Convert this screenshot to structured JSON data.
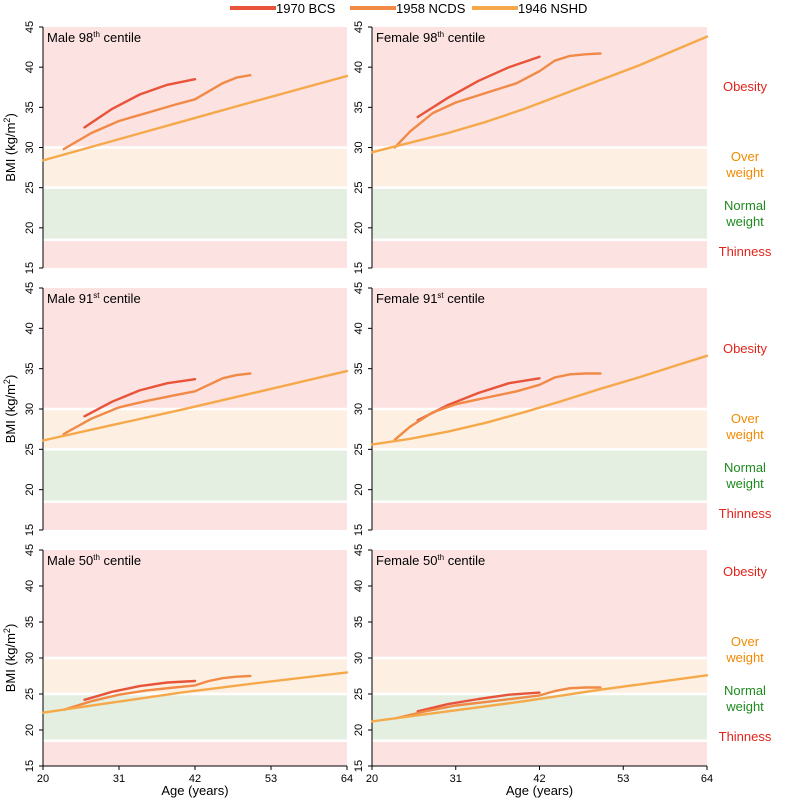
{
  "legend": [
    {
      "label": "1970 BCS",
      "color": "#e8543a"
    },
    {
      "label": "1958 NCDS",
      "color": "#f08a46"
    },
    {
      "label": "1946 NSHD",
      "color": "#f5a94a"
    }
  ],
  "colors": {
    "obesity_band": "#fde2e2",
    "overweight_band": "#fdf0e3",
    "normal_band": "#e4efe2",
    "thinness_band": "#fde2e2",
    "obesity_text": "#e0251c",
    "overweight_text": "#f08a00",
    "normal_text": "#1d8a1d",
    "thinness_text": "#e0251c"
  },
  "category_labels": {
    "obesity": "Obesity",
    "overweight_1": "Over",
    "overweight_2": "weight",
    "normal_1": "Normal",
    "normal_2": "weight",
    "thinness": "Thinness"
  },
  "axis": {
    "ylabel_main": "BMI (kg/m",
    "ylabel_sup": "2",
    "ylabel_close": ")",
    "xlabel": "Age (years)",
    "xticks": [
      "20",
      "31",
      "42",
      "53",
      "64"
    ],
    "yticks": [
      "15",
      "20",
      "25",
      "30",
      "35",
      "40",
      "45"
    ]
  },
  "chart_data": [
    {
      "type": "line",
      "title": "Male 98th centile",
      "title_main": "Male 98",
      "title_sup": "th",
      "title_end": " centile",
      "xlim": [
        20,
        64
      ],
      "ylim": [
        15,
        45
      ],
      "bands": [
        [
          15,
          18.5,
          "thinness"
        ],
        [
          18.5,
          25,
          "normal"
        ],
        [
          25,
          30,
          "overweight"
        ],
        [
          30,
          45,
          "obesity"
        ]
      ],
      "series": [
        {
          "name": "1970 BCS",
          "x": [
            26,
            30,
            34,
            38,
            42
          ],
          "y": [
            32.5,
            34.8,
            36.6,
            37.8,
            38.5
          ]
        },
        {
          "name": "1958 NCDS",
          "x": [
            23,
            27,
            31,
            35,
            39,
            42,
            44,
            46,
            48,
            50
          ],
          "y": [
            29.8,
            31.8,
            33.3,
            34.3,
            35.3,
            36.0,
            37.0,
            38.0,
            38.7,
            39.0
          ]
        },
        {
          "name": "1946 NSHD",
          "x": [
            20,
            30,
            40,
            50,
            64
          ],
          "y": [
            28.4,
            30.8,
            33.2,
            35.6,
            38.9
          ]
        }
      ]
    },
    {
      "type": "line",
      "title": "Female 98th centile",
      "title_main": "Female 98",
      "title_sup": "th",
      "title_end": " centile",
      "xlim": [
        20,
        64
      ],
      "ylim": [
        15,
        45
      ],
      "bands": [
        [
          15,
          18.5,
          "thinness"
        ],
        [
          18.5,
          25,
          "normal"
        ],
        [
          25,
          30,
          "overweight"
        ],
        [
          30,
          45,
          "obesity"
        ]
      ],
      "series": [
        {
          "name": "1970 BCS",
          "x": [
            26,
            30,
            34,
            38,
            42
          ],
          "y": [
            33.8,
            36.2,
            38.3,
            40.0,
            41.3
          ]
        },
        {
          "name": "1958 NCDS",
          "x": [
            23,
            25,
            28,
            31,
            35,
            39,
            42,
            44,
            46,
            48,
            50
          ],
          "y": [
            30.0,
            32.0,
            34.3,
            35.6,
            36.8,
            38.0,
            39.5,
            40.8,
            41.4,
            41.6,
            41.7
          ]
        },
        {
          "name": "1946 NSHD",
          "x": [
            20,
            25,
            30,
            35,
            40,
            45,
            50,
            55,
            60,
            64
          ],
          "y": [
            29.4,
            30.6,
            31.8,
            33.2,
            34.8,
            36.6,
            38.4,
            40.2,
            42.2,
            43.8
          ]
        }
      ]
    },
    {
      "type": "line",
      "title": "Male 91st centile",
      "title_main": "Male 91",
      "title_sup": "st",
      "title_end": " centile",
      "xlim": [
        20,
        64
      ],
      "ylim": [
        15,
        45
      ],
      "bands": [
        [
          15,
          18.5,
          "thinness"
        ],
        [
          18.5,
          25,
          "normal"
        ],
        [
          25,
          30,
          "overweight"
        ],
        [
          30,
          45,
          "obesity"
        ]
      ],
      "series": [
        {
          "name": "1970 BCS",
          "x": [
            26,
            30,
            34,
            38,
            42
          ],
          "y": [
            29.1,
            30.9,
            32.3,
            33.2,
            33.7
          ]
        },
        {
          "name": "1958 NCDS",
          "x": [
            23,
            27,
            31,
            35,
            39,
            42,
            44,
            46,
            48,
            50
          ],
          "y": [
            26.9,
            28.8,
            30.2,
            31.0,
            31.7,
            32.2,
            33.0,
            33.8,
            34.2,
            34.4
          ]
        },
        {
          "name": "1946 NSHD",
          "x": [
            20,
            30,
            40,
            50,
            64
          ],
          "y": [
            26.1,
            28.0,
            29.9,
            31.9,
            34.7
          ]
        }
      ]
    },
    {
      "type": "line",
      "title": "Female 91st centile",
      "title_main": "Female 91",
      "title_sup": "st",
      "title_end": " centile",
      "xlim": [
        20,
        64
      ],
      "ylim": [
        15,
        45
      ],
      "bands": [
        [
          15,
          18.5,
          "thinness"
        ],
        [
          18.5,
          25,
          "normal"
        ],
        [
          25,
          30,
          "overweight"
        ],
        [
          30,
          45,
          "obesity"
        ]
      ],
      "series": [
        {
          "name": "1970 BCS",
          "x": [
            26,
            30,
            34,
            38,
            42
          ],
          "y": [
            28.6,
            30.5,
            32.0,
            33.2,
            33.8
          ]
        },
        {
          "name": "1958 NCDS",
          "x": [
            23,
            25,
            28,
            31,
            35,
            39,
            42,
            44,
            46,
            48,
            50
          ],
          "y": [
            26.2,
            27.8,
            29.6,
            30.6,
            31.4,
            32.2,
            33.0,
            33.9,
            34.3,
            34.4,
            34.4
          ]
        },
        {
          "name": "1946 NSHD",
          "x": [
            20,
            25,
            30,
            35,
            40,
            45,
            50,
            55,
            60,
            64
          ],
          "y": [
            25.6,
            26.3,
            27.2,
            28.3,
            29.6,
            31.0,
            32.5,
            33.9,
            35.4,
            36.6
          ]
        }
      ]
    },
    {
      "type": "line",
      "title": "Male 50th centile",
      "title_main": "Male 50",
      "title_sup": "th",
      "title_end": " centile",
      "xlim": [
        20,
        64
      ],
      "ylim": [
        15,
        45
      ],
      "bands": [
        [
          15,
          18.5,
          "thinness"
        ],
        [
          18.5,
          25,
          "normal"
        ],
        [
          25,
          30,
          "overweight"
        ],
        [
          30,
          45,
          "obesity"
        ]
      ],
      "series": [
        {
          "name": "1970 BCS",
          "x": [
            26,
            30,
            34,
            38,
            42
          ],
          "y": [
            24.2,
            25.3,
            26.1,
            26.6,
            26.8
          ]
        },
        {
          "name": "1958 NCDS",
          "x": [
            23,
            27,
            31,
            35,
            39,
            42,
            44,
            46,
            48,
            50
          ],
          "y": [
            22.8,
            24.0,
            24.9,
            25.5,
            25.9,
            26.2,
            26.8,
            27.2,
            27.4,
            27.5
          ]
        },
        {
          "name": "1946 NSHD",
          "x": [
            20,
            30,
            40,
            50,
            64
          ],
          "y": [
            22.4,
            23.8,
            25.2,
            26.4,
            28.0
          ]
        }
      ]
    },
    {
      "type": "line",
      "title": "Female 50th centile",
      "title_main": "Female 50",
      "title_sup": "th",
      "title_end": " centile",
      "xlim": [
        20,
        64
      ],
      "ylim": [
        15,
        45
      ],
      "bands": [
        [
          15,
          18.5,
          "thinness"
        ],
        [
          18.5,
          25,
          "normal"
        ],
        [
          25,
          30,
          "overweight"
        ],
        [
          30,
          45,
          "obesity"
        ]
      ],
      "series": [
        {
          "name": "1970 BCS",
          "x": [
            26,
            30,
            34,
            38,
            42
          ],
          "y": [
            22.6,
            23.6,
            24.3,
            24.9,
            25.2
          ]
        },
        {
          "name": "1958 NCDS",
          "x": [
            23,
            27,
            31,
            35,
            39,
            42,
            44,
            46,
            48,
            50
          ],
          "y": [
            21.6,
            22.6,
            23.4,
            23.9,
            24.4,
            24.8,
            25.4,
            25.8,
            25.9,
            25.9
          ]
        },
        {
          "name": "1946 NSHD",
          "x": [
            20,
            30,
            40,
            50,
            64
          ],
          "y": [
            21.2,
            22.6,
            24.0,
            25.6,
            27.6
          ]
        }
      ]
    }
  ]
}
